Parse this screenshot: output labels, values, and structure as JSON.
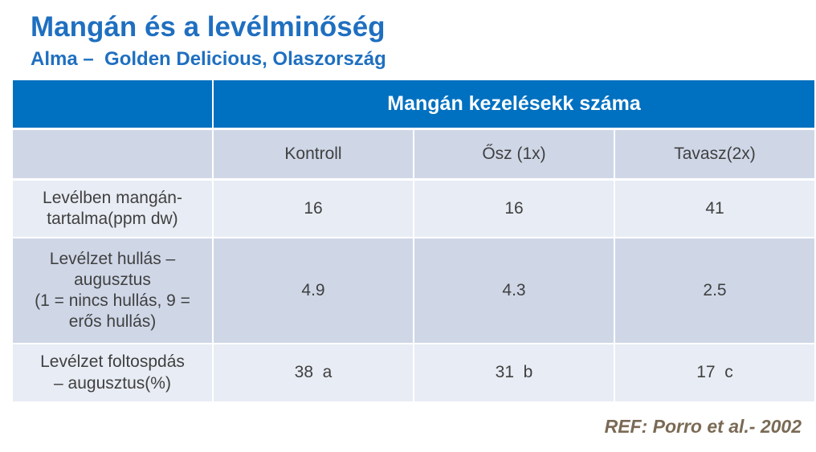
{
  "header": {
    "title": "Mangán és a levélminőség",
    "subtitle": "Alma –  Golden Delicious, Olaszország"
  },
  "table": {
    "group_header": "Mangán kezelésekk száma",
    "columns": [
      "Kontroll",
      "Ősz (1x)",
      "Tavasz(2x)"
    ],
    "rows": [
      {
        "label": [
          "Levélben mangán-",
          "tartalma(ppm dw)"
        ],
        "cells": [
          16,
          16,
          41
        ]
      },
      {
        "label": [
          "Levélzet hullás –",
          "augusztus",
          "(1 = nincs hullás, 9 =",
          "erős hullás)"
        ],
        "cells": [
          4.9,
          4.3,
          2.5
        ]
      },
      {
        "label": [
          "Levélzet foltospdás",
          "– augusztus(%)"
        ],
        "cells": [
          "38  a",
          "31  b",
          "17  c"
        ]
      }
    ]
  },
  "footer": {
    "reference": "REF: Porro et al.- 2002"
  }
}
